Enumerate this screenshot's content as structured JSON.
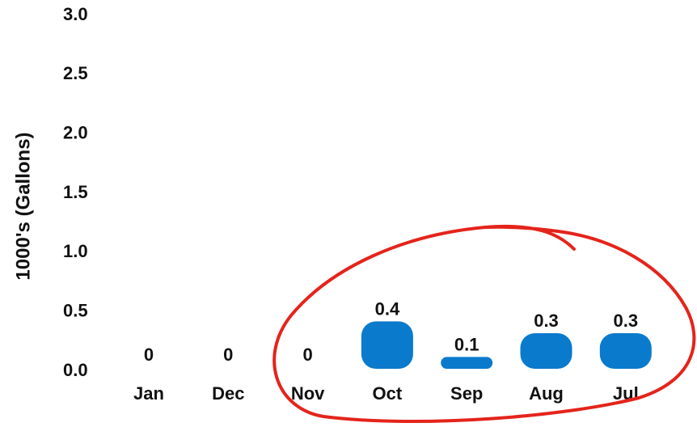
{
  "chart_data": {
    "type": "bar",
    "title": "",
    "xlabel": "",
    "ylabel": "1000's (Gallons)",
    "ylim": [
      0,
      3.0
    ],
    "yticks": [
      "0.0",
      "0.5",
      "1.0",
      "1.5",
      "2.0",
      "2.5",
      "3.0"
    ],
    "categories": [
      "Jan",
      "Dec",
      "Nov",
      "Oct",
      "Sep",
      "Aug",
      "Jul"
    ],
    "values": [
      0,
      0,
      0,
      0.4,
      0.1,
      0.3,
      0.3
    ],
    "data_labels": [
      "0",
      "0",
      "0",
      "0.4",
      "0.1",
      "0.3",
      "0.3"
    ],
    "grid": false,
    "legend": "none",
    "bar_color": "#0A7ACC",
    "annotation_color": "#E4241B"
  }
}
